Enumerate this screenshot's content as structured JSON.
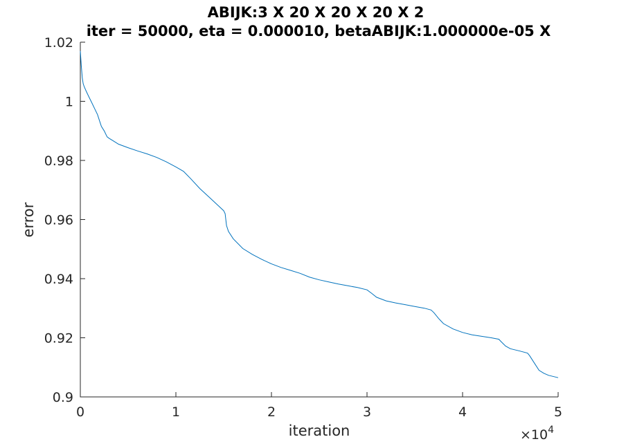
{
  "chart_data": {
    "type": "line",
    "title": "ABIJK:3 X 20 X 20 X 20 X 2",
    "subtitle": "iter = 50000, eta = 0.000010, betaABIJK:1.000000e-05 X",
    "xlabel": "iteration",
    "ylabel": "error",
    "xlim": [
      0,
      50000
    ],
    "ylim": [
      0.9,
      1.02
    ],
    "x_ticks": [
      0,
      10000,
      20000,
      30000,
      40000,
      50000
    ],
    "x_tick_labels": [
      "0",
      "1",
      "2",
      "3",
      "4",
      "5"
    ],
    "x_exponent_label": "×10",
    "x_exponent_power": "4",
    "y_ticks": [
      0.9,
      0.92,
      0.94,
      0.96,
      0.98,
      1.0,
      1.02
    ],
    "y_tick_labels": [
      "0.9",
      "0.92",
      "0.94",
      "0.96",
      "0.98",
      "1",
      "1.02"
    ],
    "grid": false,
    "legend": "none",
    "color": "#0072bd",
    "series": [
      {
        "x": [
          0,
          100,
          200,
          300,
          400,
          600,
          900,
          1200,
          1500,
          1800,
          2000,
          2200,
          2500,
          2800,
          3000,
          3500,
          4000,
          5000,
          6000,
          7000,
          8000,
          9000,
          10000,
          10800,
          11500,
          12500,
          13500,
          14500,
          15000,
          15150,
          15300,
          15500,
          16000,
          17000,
          18000,
          19000,
          20000,
          21000,
          22000,
          23000,
          24000,
          25000,
          26000,
          27000,
          28000,
          29000,
          30000,
          30500,
          31000,
          32000,
          33000,
          34000,
          35000,
          36000,
          36700,
          37000,
          37500,
          38000,
          39000,
          40000,
          41000,
          42000,
          43000,
          43800,
          44000,
          44500,
          45000,
          46000,
          46800,
          47000,
          47500,
          48000,
          48500,
          49000,
          50000
        ],
        "y": [
          1.017,
          1.012,
          1.008,
          1.006,
          1.005,
          1.0035,
          1.0015,
          0.9995,
          0.9975,
          0.9955,
          0.9935,
          0.9915,
          0.99,
          0.988,
          0.9875,
          0.9865,
          0.9855,
          0.9843,
          0.9832,
          0.9822,
          0.981,
          0.9795,
          0.9778,
          0.9763,
          0.974,
          0.9705,
          0.9675,
          0.9645,
          0.963,
          0.962,
          0.958,
          0.956,
          0.9535,
          0.9502,
          0.9482,
          0.9465,
          0.945,
          0.9438,
          0.9428,
          0.9418,
          0.9405,
          0.9396,
          0.9389,
          0.9382,
          0.9376,
          0.937,
          0.9362,
          0.935,
          0.9337,
          0.9325,
          0.9318,
          0.9312,
          0.9306,
          0.93,
          0.9294,
          0.9285,
          0.9265,
          0.9248,
          0.923,
          0.9218,
          0.921,
          0.9205,
          0.92,
          0.9195,
          0.9188,
          0.9172,
          0.9163,
          0.9155,
          0.9148,
          0.914,
          0.9115,
          0.909,
          0.908,
          0.9073,
          0.9065
        ]
      }
    ]
  }
}
